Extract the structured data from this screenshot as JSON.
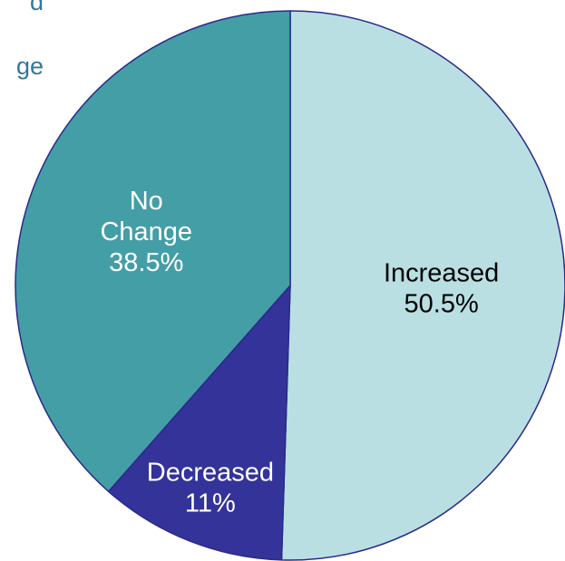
{
  "header_fragments": [
    "d",
    "ge"
  ],
  "chart_data": {
    "type": "pie",
    "title": "",
    "slices": [
      {
        "label": "Increased",
        "value": 50.5,
        "value_label": "50.5%",
        "color": "#b9dfe3",
        "text_color": "#000000"
      },
      {
        "label": "Decreased",
        "value": 11,
        "value_label": "11%",
        "color": "#333399",
        "text_color": "#ffffff"
      },
      {
        "label": "No Change",
        "value": 38.5,
        "value_label": "38.5%",
        "color": "#449ea6",
        "text_color": "#ffffff"
      }
    ],
    "start_angle_deg": 0,
    "direction": "clockwise",
    "outline_color": "#2a2a8a"
  }
}
